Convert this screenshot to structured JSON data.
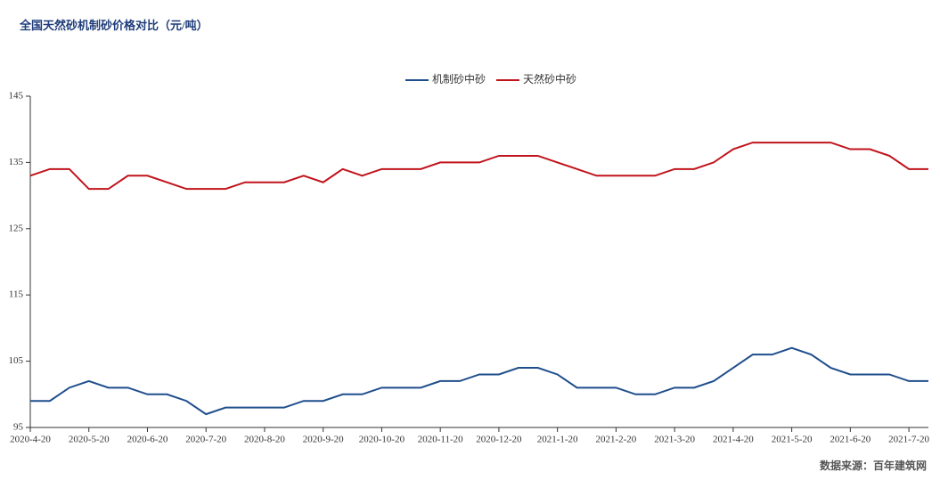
{
  "chart_data": {
    "type": "line",
    "title": "全国天然砂机制砂价格对比（元/吨）",
    "source": "数据来源：百年建筑网",
    "categories": [
      "2020-4-20",
      null,
      null,
      "2020-5-20",
      null,
      null,
      "2020-6-20",
      null,
      null,
      "2020-7-20",
      null,
      null,
      "2020-8-20",
      null,
      null,
      "2020-9-20",
      null,
      null,
      "2020-10-20",
      null,
      null,
      "2020-11-20",
      null,
      null,
      "2020-12-20",
      null,
      null,
      "2021-1-20",
      null,
      null,
      "2021-2-20",
      null,
      null,
      "2021-3-20",
      null,
      null,
      "2021-4-20",
      null,
      null,
      "2021-5-20",
      null,
      null,
      "2021-6-20",
      null,
      null,
      "2021-7-20",
      null
    ],
    "series": [
      {
        "name": "机制砂中砂",
        "color": "#1f4e8c",
        "values": [
          99,
          99,
          101,
          102,
          101,
          101,
          100,
          100,
          99,
          97,
          98,
          98,
          98,
          98,
          99,
          99,
          100,
          100,
          101,
          101,
          101,
          102,
          102,
          103,
          103,
          104,
          104,
          103,
          101,
          101,
          101,
          100,
          100,
          101,
          101,
          102,
          104,
          106,
          106,
          107,
          106,
          104,
          103,
          103,
          103,
          102,
          102
        ]
      },
      {
        "name": "天然砂中砂",
        "color": "#c0141c",
        "values": [
          133,
          134,
          134,
          131,
          131,
          133,
          133,
          132,
          131,
          131,
          131,
          132,
          132,
          132,
          133,
          132,
          134,
          133,
          134,
          134,
          134,
          135,
          135,
          135,
          136,
          136,
          136,
          135,
          134,
          133,
          133,
          133,
          133,
          134,
          134,
          135,
          137,
          138,
          138,
          138,
          138,
          138,
          137,
          137,
          136,
          134,
          134
        ]
      }
    ],
    "ylim": [
      95,
      145
    ],
    "yticks": [
      95,
      105,
      115,
      125,
      135,
      145
    ],
    "legend": "top"
  }
}
